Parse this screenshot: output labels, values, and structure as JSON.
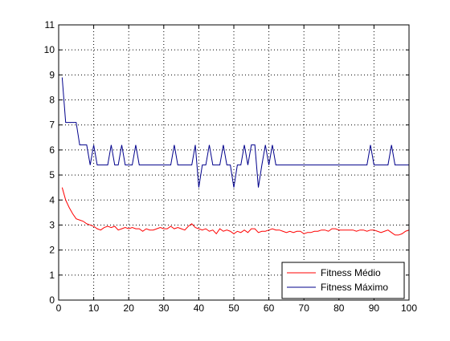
{
  "chart_data": {
    "type": "line",
    "title": "",
    "xlabel": "",
    "ylabel": "",
    "xlim": [
      0,
      100
    ],
    "ylim": [
      0,
      11
    ],
    "xticks": [
      0,
      10,
      20,
      30,
      40,
      50,
      60,
      70,
      80,
      90,
      100
    ],
    "yticks": [
      0,
      1,
      2,
      3,
      4,
      5,
      6,
      7,
      8,
      9,
      10,
      11
    ],
    "grid": true,
    "legend_position": "bottom-right",
    "x": [
      1,
      2,
      3,
      4,
      5,
      6,
      7,
      8,
      9,
      10,
      11,
      12,
      13,
      14,
      15,
      16,
      17,
      18,
      19,
      20,
      21,
      22,
      23,
      24,
      25,
      26,
      27,
      28,
      29,
      30,
      31,
      32,
      33,
      34,
      35,
      36,
      37,
      38,
      39,
      40,
      41,
      42,
      43,
      44,
      45,
      46,
      47,
      48,
      49,
      50,
      51,
      52,
      53,
      54,
      55,
      56,
      57,
      58,
      59,
      60,
      61,
      62,
      63,
      64,
      65,
      66,
      67,
      68,
      69,
      70,
      71,
      72,
      73,
      74,
      75,
      76,
      77,
      78,
      79,
      80,
      81,
      82,
      83,
      84,
      85,
      86,
      87,
      88,
      89,
      90,
      91,
      92,
      93,
      94,
      95,
      96,
      97,
      98,
      99,
      100
    ],
    "series": [
      {
        "name": "Fitness Médio",
        "color": "#ff0000",
        "values": [
          4.5,
          4.0,
          3.7,
          3.45,
          3.25,
          3.2,
          3.15,
          3.05,
          3.0,
          2.95,
          2.85,
          2.8,
          2.9,
          2.95,
          2.9,
          2.95,
          2.8,
          2.85,
          2.9,
          2.85,
          2.9,
          2.85,
          2.85,
          2.75,
          2.85,
          2.8,
          2.8,
          2.85,
          2.9,
          2.85,
          2.85,
          2.95,
          2.85,
          2.9,
          2.85,
          2.8,
          2.95,
          3.05,
          2.9,
          2.85,
          2.8,
          2.85,
          2.75,
          2.8,
          2.65,
          2.85,
          2.75,
          2.8,
          2.75,
          2.65,
          2.75,
          2.7,
          2.8,
          2.7,
          2.85,
          2.85,
          2.7,
          2.75,
          2.75,
          2.8,
          2.85,
          2.8,
          2.8,
          2.75,
          2.7,
          2.75,
          2.7,
          2.75,
          2.75,
          2.65,
          2.7,
          2.7,
          2.75,
          2.75,
          2.8,
          2.8,
          2.75,
          2.85,
          2.85,
          2.8,
          2.8,
          2.8,
          2.8,
          2.8,
          2.75,
          2.8,
          2.8,
          2.75,
          2.8,
          2.8,
          2.75,
          2.7,
          2.75,
          2.8,
          2.7,
          2.6,
          2.6,
          2.65,
          2.75,
          2.8
        ]
      },
      {
        "name": "Fitness Máximo",
        "color": "#00008b",
        "values": [
          8.9,
          7.1,
          7.1,
          7.1,
          7.1,
          6.2,
          6.2,
          6.2,
          5.4,
          6.2,
          5.4,
          5.4,
          5.4,
          5.4,
          6.2,
          5.4,
          5.4,
          6.2,
          5.4,
          5.4,
          5.4,
          6.2,
          5.4,
          5.4,
          5.4,
          5.4,
          5.4,
          5.4,
          5.4,
          5.4,
          5.4,
          5.4,
          6.2,
          5.4,
          5.4,
          5.4,
          5.4,
          5.4,
          6.2,
          4.5,
          5.4,
          5.4,
          6.2,
          5.4,
          5.4,
          5.4,
          6.2,
          5.4,
          5.4,
          4.5,
          5.4,
          5.4,
          6.2,
          5.4,
          6.2,
          6.2,
          4.5,
          5.4,
          6.2,
          5.4,
          6.2,
          5.4,
          5.4,
          5.4,
          5.4,
          5.4,
          5.4,
          5.4,
          5.4,
          5.4,
          5.4,
          5.4,
          5.4,
          5.4,
          5.4,
          5.4,
          5.4,
          5.4,
          5.4,
          5.4,
          5.4,
          5.4,
          5.4,
          5.4,
          5.4,
          5.4,
          5.4,
          5.4,
          6.2,
          5.4,
          5.4,
          5.4,
          5.4,
          5.4,
          6.2,
          5.4,
          5.4,
          5.4,
          5.4,
          5.4
        ]
      }
    ]
  }
}
